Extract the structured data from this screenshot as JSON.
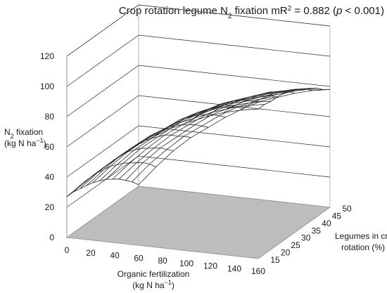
{
  "chart_data": {
    "type": "surface",
    "title": {
      "prefix": "Crop rotation legume N",
      "sub": "2",
      "middle": " fixation mR",
      "sup": "2",
      "stat": " = 0.882 (",
      "italic": "p",
      "suffix": " < 0.001)"
    },
    "zlabel": {
      "line1_main": "N",
      "line1_sub": "2",
      "line1_rest": " fixation",
      "line2_main": "(kg N ha",
      "line2_sup": "−1",
      "line2_rest": ")"
    },
    "xlabel": {
      "line1": "Organic fertilization",
      "line2_main": "(kg N ha",
      "line2_sup": "−1",
      "line2_rest": ")"
    },
    "ylabel": {
      "line1": "Legumes in crop",
      "line2": "rotation (%)"
    },
    "x_ticks": [
      "0",
      "20",
      "40",
      "60",
      "80",
      "100",
      "120",
      "140",
      "160"
    ],
    "y_ticks": [
      "15",
      "20",
      "25",
      "30",
      "35",
      "40",
      "45",
      "50"
    ],
    "z_ticks": [
      "0",
      "20",
      "40",
      "60",
      "80",
      "100",
      "120"
    ],
    "xlim": [
      0,
      160
    ],
    "ylim": [
      15,
      50
    ],
    "zlim": [
      0,
      120
    ],
    "grid": true,
    "floor_color": "#bdbdbd",
    "mesh_color": "#2a2a2a",
    "surface_x": [
      0,
      14.55,
      29.09,
      43.64,
      58.18,
      72.73,
      87.27,
      101.82,
      116.36,
      130.91,
      145.45,
      160
    ],
    "surface_y": [
      15,
      18.18,
      21.36,
      24.55,
      27.73,
      30.91,
      34.09,
      37.27,
      40.45,
      43.64,
      46.82,
      50
    ],
    "surface_z": [
      [
        27,
        38,
        48,
        57,
        66,
        73,
        80,
        85,
        90,
        94,
        97,
        99
      ],
      [
        27,
        38,
        48,
        57,
        66,
        73,
        80,
        85,
        90,
        94,
        97,
        99
      ],
      [
        26,
        38,
        48,
        57,
        66,
        73,
        80,
        85,
        90,
        93,
        96,
        98
      ],
      [
        25,
        37,
        48,
        57,
        65,
        72,
        79,
        84,
        89,
        92,
        95,
        98
      ],
      [
        24,
        36,
        47,
        56,
        64,
        72,
        78,
        83,
        88,
        91,
        94,
        97
      ],
      [
        22,
        34,
        45,
        54,
        63,
        70,
        76,
        82,
        86,
        90,
        93,
        95
      ],
      [
        20,
        32,
        43,
        52,
        61,
        68,
        74,
        80,
        84,
        88,
        91,
        93
      ],
      [
        17,
        29,
        40,
        50,
        58,
        66,
        72,
        77,
        82,
        86,
        88,
        90
      ],
      [
        14,
        26,
        37,
        47,
        55,
        63,
        69,
        75,
        79,
        83,
        86,
        88
      ],
      [
        10,
        23,
        34,
        43,
        52,
        60,
        66,
        72,
        76,
        80,
        83,
        85
      ],
      [
        6,
        19,
        30,
        40,
        48,
        56,
        63,
        68,
        73,
        77,
        80,
        81
      ],
      [
        1,
        14,
        26,
        36,
        44,
        52,
        59,
        65,
        69,
        73,
        76,
        78
      ]
    ]
  }
}
